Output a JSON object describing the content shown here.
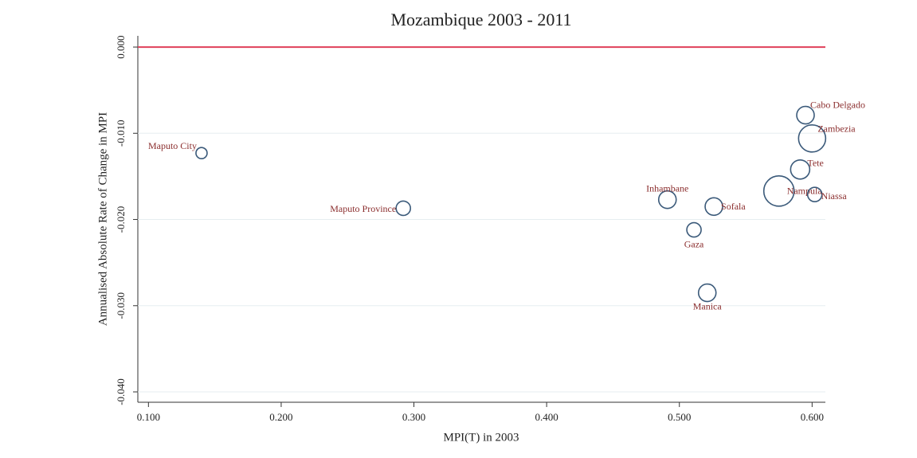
{
  "chart_data": {
    "type": "scatter",
    "title": "Mozambique 2003 - 2011",
    "x_label": "MPI(T) in 2003",
    "y_label": "Annualised Absolute Rate of Change in MPI",
    "series": [
      {
        "color": "#3b5a7a",
        "label_color": "#8b2e2e",
        "labels": [
          "Maputo City",
          "Maputo Province",
          "Inhambane",
          "Sofala",
          "Gaza",
          "Manica",
          "Cabo Delgado",
          "Zambezia",
          "Tete",
          "Nampula",
          "Niassa"
        ],
        "x": [
          0.14,
          0.292,
          0.491,
          0.526,
          0.511,
          0.521,
          0.595,
          0.6,
          0.591,
          0.575,
          0.602
        ],
        "values": [
          -0.0123,
          -0.0187,
          -0.0177,
          -0.0185,
          -0.0212,
          -0.0285,
          -0.0079,
          -0.0106,
          -0.0142,
          -0.0167,
          -0.0171
        ],
        "sizes": [
          7,
          9,
          11,
          11,
          9,
          11,
          11,
          17,
          12,
          19,
          9
        ]
      }
    ],
    "xlim": [
      0.092,
      0.61
    ],
    "ylim": [
      -0.0412,
      0.0013
    ],
    "xticks": [
      {
        "value": 0.1,
        "label": "0.100"
      },
      {
        "value": 0.2,
        "label": "0.200"
      },
      {
        "value": 0.3,
        "label": "0.300"
      },
      {
        "value": 0.4,
        "label": "0.400"
      },
      {
        "value": 0.5,
        "label": "0.500"
      },
      {
        "value": 0.6,
        "label": "0.600"
      }
    ],
    "yticks": [
      {
        "value": 0,
        "label": "0.000"
      },
      {
        "value": -0.01,
        "label": "-0.010"
      },
      {
        "value": -0.02,
        "label": "-0.020"
      },
      {
        "value": -0.03,
        "label": "-0.030"
      },
      {
        "value": -0.04,
        "label": "-0.040"
      }
    ],
    "grid": true,
    "reference_line": {
      "value": 0,
      "color": "#e0405a"
    }
  }
}
